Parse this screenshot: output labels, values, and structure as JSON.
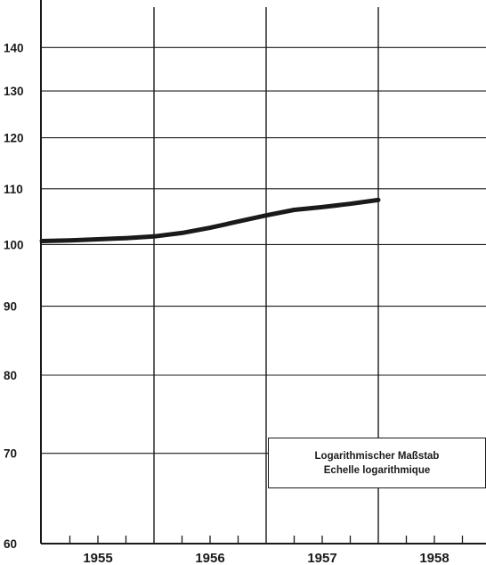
{
  "chart_data": {
    "type": "line",
    "title": "",
    "xlabel": "",
    "ylabel": "",
    "scale": "log",
    "ylim": [
      60,
      150
    ],
    "y_ticks": [
      60,
      70,
      80,
      90,
      100,
      110,
      120,
      130,
      140
    ],
    "x_range": [
      1955.0,
      1959.0
    ],
    "x_ticks": [
      "1955",
      "1956",
      "1957",
      "1958"
    ],
    "quarters_per_year": 4,
    "grid": true,
    "series": [
      {
        "x": [
          1955.0,
          1955.25,
          1955.5,
          1955.75,
          1956.0,
          1956.25,
          1956.5,
          1956.75,
          1957.0,
          1957.25,
          1957.5,
          1957.75,
          1958.0
        ],
        "values": [
          100.6,
          100.7,
          100.9,
          101.1,
          101.4,
          102.0,
          102.9,
          104.0,
          105.1,
          106.1,
          106.6,
          107.2,
          107.9
        ]
      }
    ],
    "annotation": {
      "line1": "Logarithmischer Maßstab",
      "line2": "Echelle logarithmique"
    }
  },
  "colors": {
    "ink": "#1a1a1a",
    "background": "#ffffff"
  }
}
